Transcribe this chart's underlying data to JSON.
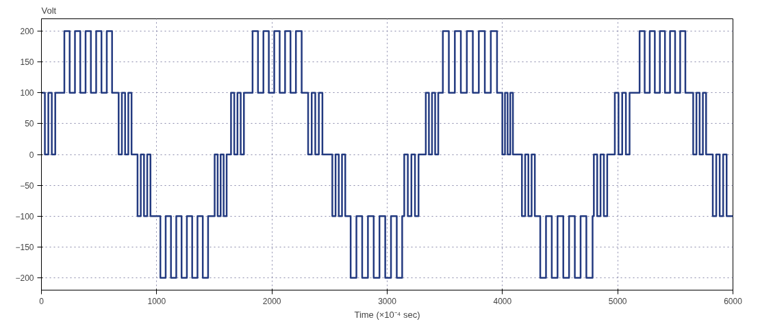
{
  "chart_data": {
    "type": "step",
    "xlabel": "Time (×10⁻⁴ sec)",
    "ylabel": "Volt",
    "xlim": [
      0,
      6000
    ],
    "xticks": [
      0,
      1000,
      2000,
      3000,
      4000,
      5000,
      6000
    ],
    "ylim": [
      -220,
      220
    ],
    "yticks": [
      -200,
      -150,
      -100,
      -50,
      0,
      50,
      100,
      150,
      200
    ],
    "grid": true,
    "marker": "none",
    "line_style": "solid",
    "series": [
      {
        "color": "#233a80",
        "x": [
          0,
          30,
          60,
          90,
          120,
          199,
          245,
          291,
          337,
          383,
          429,
          475,
          521,
          567,
          613,
          670,
          698,
          726,
          754,
          782,
          834,
          862,
          890,
          918,
          946,
          1032,
          1078,
          1124,
          1170,
          1216,
          1262,
          1308,
          1354,
          1400,
          1446,
          1503,
          1529,
          1555,
          1581,
          1607,
          1645,
          1673,
          1701,
          1729,
          1757,
          1832,
          1879,
          1926,
          1973,
          2020,
          2067,
          2114,
          2161,
          2208,
          2258,
          2314,
          2345,
          2376,
          2407,
          2438,
          2524,
          2552,
          2580,
          2608,
          2636,
          2683,
          2733,
          2783,
          2833,
          2883,
          2933,
          2983,
          3033,
          3083,
          3130,
          3148,
          3179,
          3210,
          3241,
          3272,
          3335,
          3362,
          3389,
          3416,
          3443,
          3483,
          3535,
          3587,
          3639,
          3691,
          3743,
          3795,
          3847,
          3899,
          3953,
          3999,
          4022,
          4045,
          4068,
          4091,
          4169,
          4197,
          4225,
          4253,
          4281,
          4328,
          4378,
          4428,
          4478,
          4528,
          4578,
          4628,
          4678,
          4728,
          4782,
          4793,
          4822,
          4851,
          4880,
          4909,
          4975,
          5007,
          5039,
          5071,
          5103,
          5190,
          5234,
          5278,
          5322,
          5366,
          5410,
          5454,
          5498,
          5542,
          5587,
          5655,
          5683,
          5711,
          5739,
          5767,
          5825,
          5855,
          5885,
          5915,
          5945,
          6000
        ],
        "values": [
          100,
          0,
          100,
          0,
          100,
          200,
          100,
          200,
          100,
          200,
          100,
          200,
          100,
          200,
          100,
          0,
          100,
          0,
          100,
          0,
          -100,
          0,
          -100,
          0,
          -100,
          -200,
          -100,
          -200,
          -100,
          -200,
          -100,
          -200,
          -100,
          -200,
          -100,
          0,
          -100,
          0,
          -100,
          0,
          100,
          0,
          100,
          0,
          100,
          200,
          100,
          200,
          100,
          200,
          100,
          200,
          100,
          200,
          100,
          0,
          100,
          0,
          100,
          0,
          -100,
          0,
          -100,
          0,
          -100,
          -200,
          -100,
          -200,
          -100,
          -200,
          -100,
          -200,
          -100,
          -200,
          -100,
          0,
          -100,
          0,
          -100,
          0,
          100,
          0,
          100,
          0,
          100,
          200,
          100,
          200,
          100,
          200,
          100,
          200,
          100,
          200,
          100,
          0,
          100,
          0,
          100,
          0,
          -100,
          0,
          -100,
          0,
          -100,
          -200,
          -100,
          -200,
          -100,
          -200,
          -100,
          -200,
          -100,
          -200,
          -100,
          0,
          -100,
          0,
          -100,
          0,
          100,
          0,
          100,
          0,
          100,
          200,
          100,
          200,
          100,
          200,
          100,
          200,
          100,
          200,
          100,
          0,
          100,
          0,
          100,
          0,
          -100,
          0,
          -100,
          0,
          -100,
          -100
        ]
      }
    ]
  }
}
